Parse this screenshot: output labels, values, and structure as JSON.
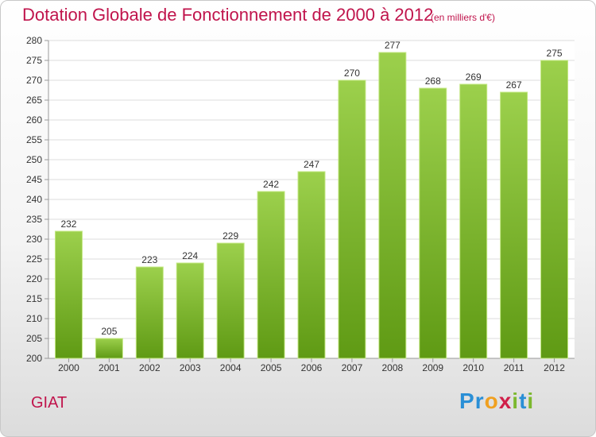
{
  "header": {
    "title": "Dotation Globale de Fonctionnement de 2000 à 2012",
    "subtitle": "(en milliers d'€)"
  },
  "footer": {
    "commune": "GIAT",
    "logo_letters": [
      "P",
      "r",
      "o",
      "x",
      "i",
      "t",
      "i"
    ],
    "logo_colors": [
      "#2a8fd6",
      "#2a8fd6",
      "#f0a020",
      "#d0204a",
      "#7cb82f",
      "#2a8fd6",
      "#7cb82f"
    ]
  },
  "colors": {
    "title": "#c0144c",
    "bar_top": "#9cd04c",
    "bar_bottom": "#5f9a14",
    "bar_edge": "#c4e884"
  },
  "chart_data": {
    "type": "bar",
    "categories": [
      "2000",
      "2001",
      "2002",
      "2003",
      "2004",
      "2005",
      "2006",
      "2007",
      "2008",
      "2009",
      "2010",
      "2011",
      "2012"
    ],
    "values": [
      232,
      205,
      223,
      224,
      229,
      242,
      247,
      270,
      277,
      268,
      269,
      267,
      275
    ],
    "title": "Dotation Globale de Fonctionnement de 2000 à 2012",
    "subtitle": "(en milliers d'€)",
    "xlabel": "",
    "ylabel": "",
    "ylim": [
      200,
      280
    ],
    "ytick_step": 5,
    "grid": "horizontal",
    "legend": "none",
    "data_labels": true
  }
}
